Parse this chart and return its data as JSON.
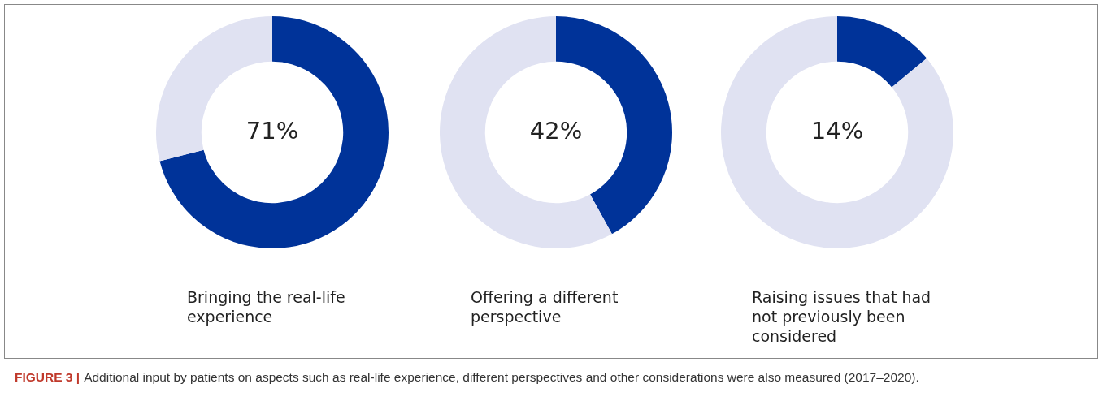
{
  "chart_data": [
    {
      "type": "donut",
      "title": "Bringing the real-life experience",
      "categories": [
        null,
        null
      ],
      "values": [
        71,
        29
      ],
      "colors": [
        "#003399",
        "#e0e2f2"
      ],
      "value_labels": [
        "71%",
        null
      ],
      "annotations": [
        "FIGURE 3 |",
        "Additional input by patients on aspects such as real-life experience, different perspectives and other considerations were also measured (2017–2020)."
      ]
    },
    {
      "type": "donut",
      "title": "Offering a different perspective",
      "categories": [
        null,
        null
      ],
      "values": [
        42,
        58
      ],
      "colors": [
        "#003399",
        "#e0e2f2"
      ],
      "value_labels": [
        "42%",
        null
      ]
    },
    {
      "type": "donut",
      "title": "Raising issues that had not previously been considered",
      "categories": [
        null,
        null
      ],
      "values": [
        14,
        86
      ],
      "colors": [
        "#003399",
        "#e0e2f2"
      ],
      "value_labels": [
        "14%",
        null
      ]
    }
  ]
}
